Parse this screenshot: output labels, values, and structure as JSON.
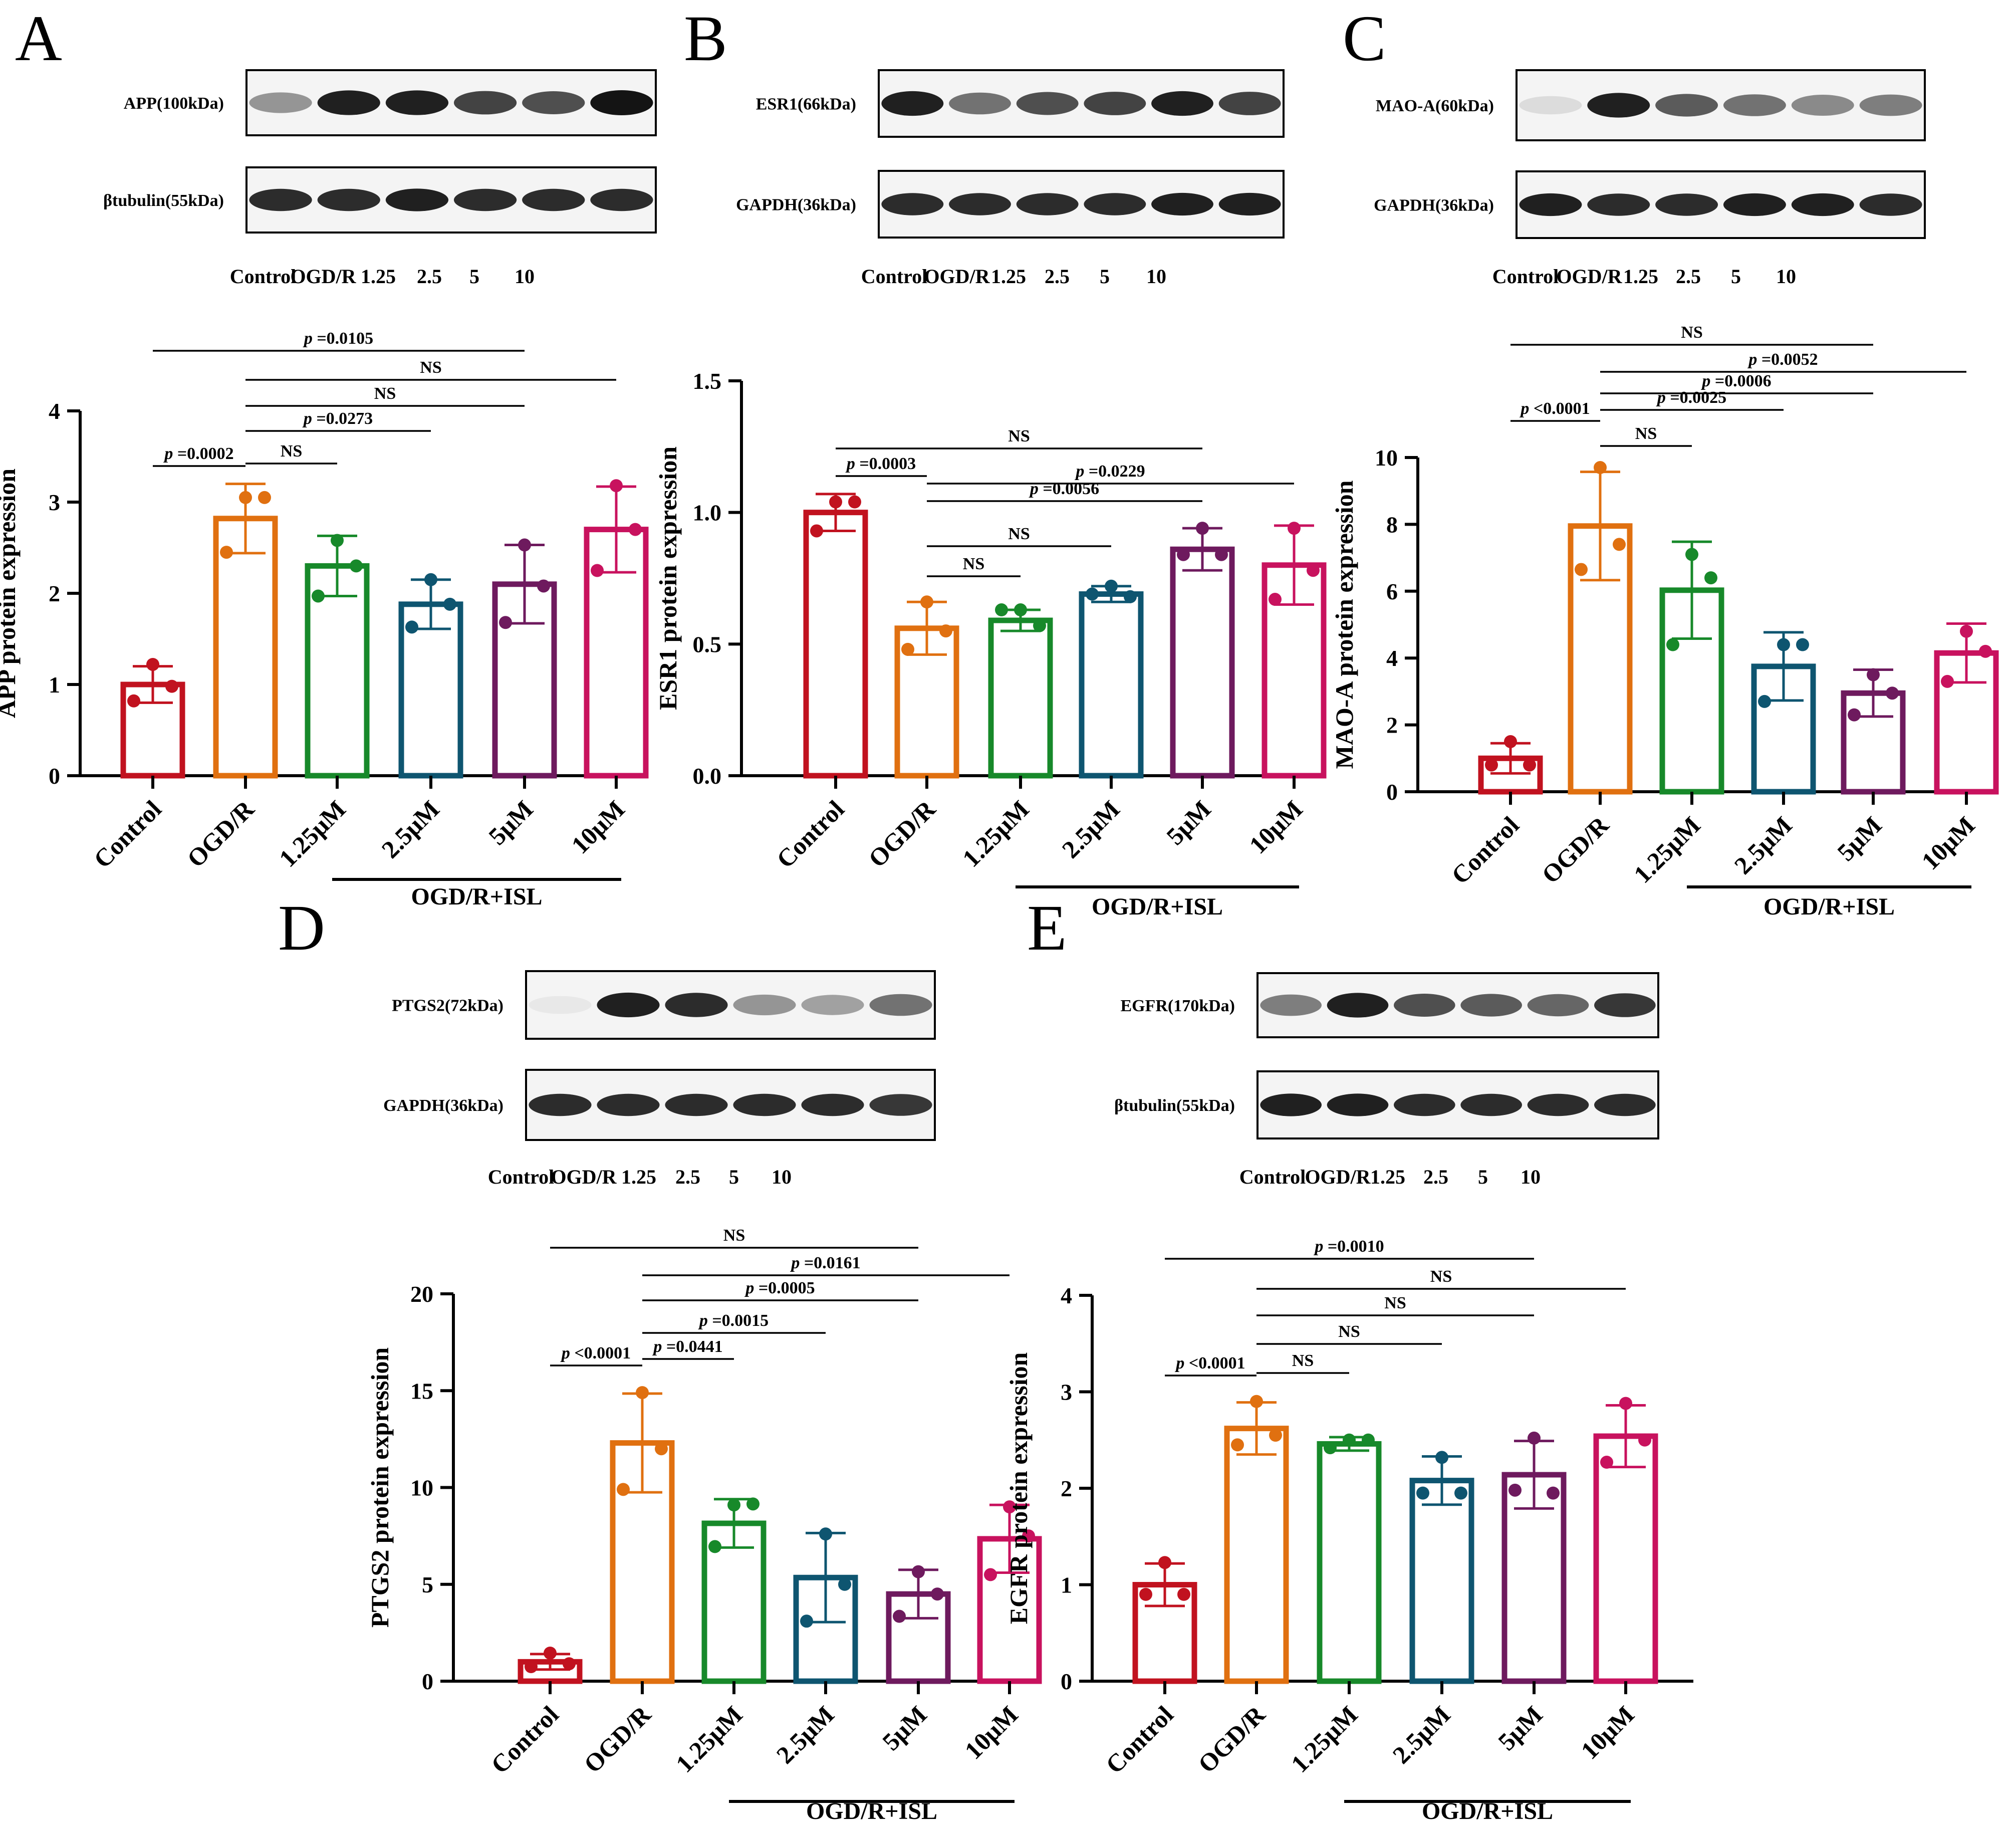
{
  "figure": {
    "ylabel_suffix": "protein expression",
    "group_label": "OGD/R+ISL"
  },
  "panels": [
    {
      "letter": "A",
      "blot": {
        "target_label": "APP(100kDa)",
        "control_label": "βtubulin(55kDa)",
        "lane_labels": [
          "Control",
          "OGD/R",
          "1.25",
          "2.5",
          "5",
          "10"
        ],
        "target_intensity": [
          0.45,
          0.95,
          0.95,
          0.8,
          0.75,
          1.0
        ],
        "control_intensity": [
          0.9,
          0.9,
          0.95,
          0.9,
          0.9,
          0.9
        ]
      },
      "chart_data": {
        "type": "bar",
        "title": "",
        "xlabel": "",
        "ylabel": "APP protein expression",
        "ylim": [
          0,
          4
        ],
        "yticks": [
          "0",
          "1",
          "2",
          "3",
          "4"
        ],
        "categories": [
          "Control",
          "OGD/R",
          "1.25μM",
          "2.5μM",
          "5μM",
          "10μM"
        ],
        "values": [
          1.0,
          2.82,
          2.3,
          1.88,
          2.1,
          2.7
        ],
        "sd": [
          0.2,
          0.38,
          0.33,
          0.27,
          0.43,
          0.47
        ],
        "points": [
          [
            1.22,
            0.98,
            0.82
          ],
          [
            3.05,
            3.05,
            2.45
          ],
          [
            2.58,
            2.3,
            1.97
          ],
          [
            2.15,
            1.88,
            1.63
          ],
          [
            2.53,
            2.08,
            1.68
          ],
          [
            3.18,
            2.7,
            2.25
          ]
        ],
        "comparisons": [
          {
            "from": 0,
            "to": 4,
            "label_p": "p",
            "label_rest": " =0.0105"
          },
          {
            "from": 1,
            "to": 5,
            "label_p": "",
            "label_rest": "NS"
          },
          {
            "from": 1,
            "to": 4,
            "label_p": "",
            "label_rest": "NS"
          },
          {
            "from": 1,
            "to": 3,
            "label_p": "p",
            "label_rest": " =0.0273"
          },
          {
            "from": 1,
            "to": 2,
            "label_p": "",
            "label_rest": "NS"
          },
          {
            "from": 0,
            "to": 1,
            "label_p": "p",
            "label_rest": " =0.0002"
          }
        ]
      }
    },
    {
      "letter": "B",
      "blot": {
        "target_label": "ESR1(66kDa)",
        "control_label": "GAPDH(36kDa)",
        "lane_labels": [
          "Control",
          "OGD/R",
          "1.25",
          "2.5",
          "5",
          "10"
        ],
        "target_intensity": [
          0.95,
          0.6,
          0.75,
          0.8,
          0.95,
          0.8
        ],
        "control_intensity": [
          0.9,
          0.9,
          0.9,
          0.9,
          0.95,
          0.95
        ]
      },
      "chart_data": {
        "type": "bar",
        "title": "",
        "xlabel": "",
        "ylabel": "ESR1 protein expression",
        "ylim": [
          0,
          1.5
        ],
        "yticks": [
          "0.0",
          "0.5",
          "1.0",
          "1.5"
        ],
        "categories": [
          "Control",
          "OGD/R",
          "1.25μM",
          "2.5μM",
          "5μM",
          "10μM"
        ],
        "values": [
          1.0,
          0.56,
          0.59,
          0.69,
          0.86,
          0.8
        ],
        "sd": [
          0.07,
          0.1,
          0.04,
          0.03,
          0.08,
          0.15
        ],
        "points": [
          [
            1.04,
            1.04,
            0.93
          ],
          [
            0.66,
            0.55,
            0.48
          ],
          [
            0.63,
            0.57,
            0.63
          ],
          [
            0.72,
            0.68,
            0.69
          ],
          [
            0.94,
            0.84,
            0.84
          ],
          [
            0.94,
            0.78,
            0.67
          ]
        ],
        "comparisons": [
          {
            "from": 0,
            "to": 4,
            "label_p": "",
            "label_rest": "NS"
          },
          {
            "from": 1,
            "to": 5,
            "label_p": "p",
            "label_rest": " =0.0229"
          },
          {
            "from": 1,
            "to": 4,
            "label_p": "p",
            "label_rest": " =0.0056"
          },
          {
            "from": 1,
            "to": 3,
            "label_p": "",
            "label_rest": "NS"
          },
          {
            "from": 1,
            "to": 2,
            "label_p": "",
            "label_rest": "NS"
          },
          {
            "from": 0,
            "to": 1,
            "label_p": "p",
            "label_rest": " =0.0003"
          }
        ]
      }
    },
    {
      "letter": "C",
      "blot": {
        "target_label": "MAO-A(60kDa)",
        "control_label": "GAPDH(36kDa)",
        "lane_labels": [
          "Control",
          "OGD/R",
          "1.25",
          "2.5",
          "5",
          "10"
        ],
        "target_intensity": [
          0.15,
          0.95,
          0.7,
          0.6,
          0.5,
          0.55
        ],
        "control_intensity": [
          0.95,
          0.9,
          0.9,
          0.95,
          0.95,
          0.9
        ]
      },
      "chart_data": {
        "type": "bar",
        "title": "",
        "xlabel": "",
        "ylabel": "MAO-A protein expression",
        "ylim": [
          0,
          10
        ],
        "yticks": [
          "0",
          "2",
          "4",
          "6",
          "8",
          "10"
        ],
        "categories": [
          "Control",
          "OGD/R",
          "1.25μM",
          "2.5μM",
          "5μM",
          "10μM"
        ],
        "values": [
          1.0,
          7.95,
          6.03,
          3.75,
          2.95,
          4.15
        ],
        "sd": [
          0.45,
          1.62,
          1.45,
          1.02,
          0.7,
          0.88
        ],
        "points": [
          [
            1.5,
            0.8,
            0.8
          ],
          [
            9.7,
            7.4,
            6.65
          ],
          [
            7.1,
            6.4,
            4.4
          ],
          [
            4.4,
            4.4,
            2.7
          ],
          [
            3.5,
            2.95,
            2.3
          ],
          [
            4.8,
            4.2,
            3.3
          ]
        ],
        "comparisons": [
          {
            "from": 0,
            "to": 4,
            "label_p": "",
            "label_rest": "NS"
          },
          {
            "from": 1,
            "to": 5,
            "label_p": "p",
            "label_rest": " =0.0052"
          },
          {
            "from": 1,
            "to": 4,
            "label_p": "p",
            "label_rest": " =0.0006"
          },
          {
            "from": 1,
            "to": 3,
            "label_p": "p",
            "label_rest": " =0.0025"
          },
          {
            "from": 1,
            "to": 2,
            "label_p": "",
            "label_rest": "NS"
          },
          {
            "from": 0,
            "to": 1,
            "label_p": "p",
            "label_rest": " <0.0001"
          }
        ]
      }
    },
    {
      "letter": "D",
      "blot": {
        "target_label": "PTGS2(72kDa)",
        "control_label": "GAPDH(36kDa)",
        "lane_labels": [
          "Control",
          "OGD/R",
          "1.25",
          "2.5",
          "5",
          "10"
        ],
        "target_intensity": [
          0.1,
          0.95,
          0.9,
          0.45,
          0.4,
          0.6
        ],
        "control_intensity": [
          0.9,
          0.9,
          0.9,
          0.9,
          0.9,
          0.85
        ]
      },
      "chart_data": {
        "type": "bar",
        "title": "",
        "xlabel": "",
        "ylabel": "PTGS2 protein expression",
        "ylim": [
          0,
          20
        ],
        "yticks": [
          "0",
          "5",
          "10",
          "15",
          "20"
        ],
        "categories": [
          "Control",
          "OGD/R",
          "1.25μM",
          "2.5μM",
          "5μM",
          "10μM"
        ],
        "values": [
          1.0,
          12.3,
          8.15,
          5.35,
          4.5,
          7.35
        ],
        "sd": [
          0.4,
          2.55,
          1.25,
          2.3,
          1.25,
          1.75
        ],
        "points": [
          [
            1.45,
            0.9,
            0.75
          ],
          [
            14.9,
            12.0,
            9.9
          ],
          [
            9.1,
            9.15,
            6.95
          ],
          [
            7.6,
            5.0,
            3.1
          ],
          [
            5.65,
            4.5,
            3.35
          ],
          [
            9.0,
            7.5,
            5.5
          ]
        ],
        "comparisons": [
          {
            "from": 0,
            "to": 4,
            "label_p": "",
            "label_rest": "NS"
          },
          {
            "from": 1,
            "to": 5,
            "label_p": "p",
            "label_rest": " =0.0161"
          },
          {
            "from": 1,
            "to": 4,
            "label_p": "p",
            "label_rest": " =0.0005"
          },
          {
            "from": 1,
            "to": 3,
            "label_p": "p",
            "label_rest": " =0.0015"
          },
          {
            "from": 1,
            "to": 2,
            "label_p": "p",
            "label_rest": " =0.0441"
          },
          {
            "from": 0,
            "to": 1,
            "label_p": "p",
            "label_rest": " <0.0001"
          }
        ]
      }
    },
    {
      "letter": "E",
      "blot": {
        "target_label": "EGFR(170kDa)",
        "control_label": "βtubulin(55kDa)",
        "lane_labels": [
          "Control",
          "OGD/R",
          "1.25",
          "2.5",
          "5",
          "10"
        ],
        "target_intensity": [
          0.55,
          0.95,
          0.75,
          0.7,
          0.65,
          0.85
        ],
        "control_intensity": [
          0.95,
          0.95,
          0.9,
          0.9,
          0.9,
          0.9
        ]
      },
      "chart_data": {
        "type": "bar",
        "title": "",
        "xlabel": "",
        "ylabel": "EGFR protein expression",
        "ylim": [
          0,
          4
        ],
        "yticks": [
          "0",
          "1",
          "2",
          "3",
          "4"
        ],
        "categories": [
          "Control",
          "OGD/R",
          "1.25μM",
          "2.5μM",
          "5μM",
          "10μM"
        ],
        "values": [
          1.0,
          2.62,
          2.46,
          2.08,
          2.14,
          2.54
        ],
        "sd": [
          0.22,
          0.27,
          0.07,
          0.25,
          0.35,
          0.32
        ],
        "points": [
          [
            1.23,
            0.9,
            0.9
          ],
          [
            2.9,
            2.55,
            2.45
          ],
          [
            2.5,
            2.5,
            2.42
          ],
          [
            2.32,
            1.95,
            1.95
          ],
          [
            2.52,
            1.95,
            1.98
          ],
          [
            2.88,
            2.5,
            2.27
          ]
        ],
        "comparisons": [
          {
            "from": 0,
            "to": 4,
            "label_p": "p",
            "label_rest": " =0.0010"
          },
          {
            "from": 1,
            "to": 5,
            "label_p": "",
            "label_rest": "NS"
          },
          {
            "from": 1,
            "to": 4,
            "label_p": "",
            "label_rest": "NS"
          },
          {
            "from": 1,
            "to": 3,
            "label_p": "",
            "label_rest": "NS"
          },
          {
            "from": 1,
            "to": 2,
            "label_p": "",
            "label_rest": "NS"
          },
          {
            "from": 0,
            "to": 1,
            "label_p": "p",
            "label_rest": " <0.0001"
          }
        ]
      }
    }
  ],
  "colors": {
    "series": [
      "#c1121f",
      "#e07010",
      "#17892a",
      "#0e5570",
      "#6e1a5e",
      "#c8125e"
    ],
    "ink": "#000000"
  }
}
